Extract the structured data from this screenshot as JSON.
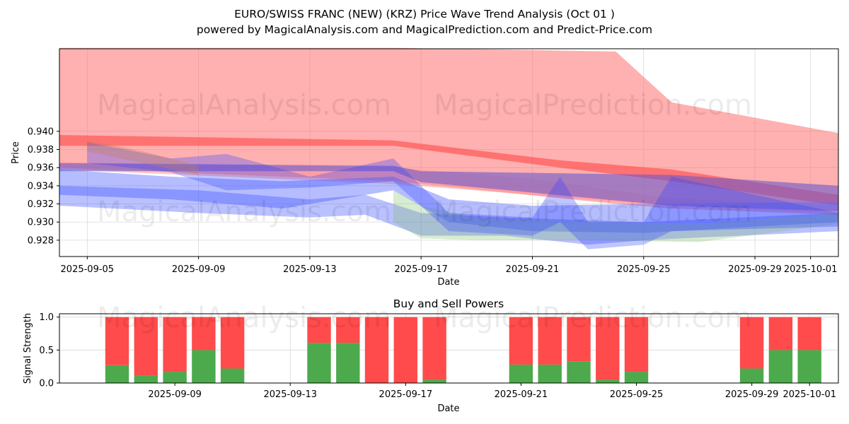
{
  "title_line1": "EURO/SWISS FRANC (NEW) (KRZ) Price Wave Trend Analysis (Oct 01 )",
  "title_line2": "powered by MagicalAnalysis.com and MagicalPrediction.com and Predict-Price.com",
  "watermarks": [
    "MagicalAnalysis.com",
    "MagicalPrediction.com"
  ],
  "chart_data": [
    {
      "type": "area",
      "title": "",
      "xlabel": "Date",
      "ylabel": "Price",
      "ylim": [
        0.9262,
        0.9491
      ],
      "xlim": [
        "2025-09-04",
        "2025-10-02"
      ],
      "yticks": [
        "0.928",
        "0.930",
        "0.932",
        "0.934",
        "0.936",
        "0.938",
        "0.940"
      ],
      "xticks": [
        "2025-09-05",
        "2025-09-09",
        "2025-09-13",
        "2025-09-17",
        "2025-09-21",
        "2025-09-25",
        "2025-09-29",
        "2025-10-01"
      ],
      "grid": true,
      "series": [
        {
          "color": "#ff7070",
          "opacity": 0.55,
          "x": [
            "2025-09-04",
            "2025-09-16",
            "2025-09-24",
            "2025-09-26",
            "2025-10-02"
          ],
          "low": [
            0.936,
            0.9345,
            0.932,
            0.9315,
            0.9308
          ],
          "high": [
            0.9492,
            0.9492,
            0.9488,
            0.9432,
            0.9398
          ]
        },
        {
          "color": "#ff4040",
          "opacity": 0.55,
          "x": [
            "2025-09-04",
            "2025-09-16",
            "2025-09-22",
            "2025-09-26",
            "2025-10-02"
          ],
          "low": [
            0.9384,
            0.9384,
            0.936,
            0.9345,
            0.9318
          ],
          "high": [
            0.9396,
            0.939,
            0.9368,
            0.9358,
            0.933
          ]
        },
        {
          "color": "#ff9090",
          "opacity": 0.5,
          "x": [
            "2025-09-04",
            "2025-09-16",
            "2025-09-21",
            "2025-09-26",
            "2025-10-02"
          ],
          "low": [
            0.9358,
            0.9342,
            0.933,
            0.9318,
            0.931
          ],
          "high": [
            0.9366,
            0.936,
            0.9348,
            0.9326,
            0.9318
          ]
        },
        {
          "color": "#6a5acd",
          "opacity": 0.6,
          "x": [
            "2025-09-04",
            "2025-09-16",
            "2025-09-17",
            "2025-09-26",
            "2025-10-02"
          ],
          "low": [
            0.9356,
            0.9356,
            0.9344,
            0.9318,
            0.9312
          ],
          "high": [
            0.9365,
            0.9362,
            0.9356,
            0.9352,
            0.934
          ]
        },
        {
          "color": "#5a6cff",
          "opacity": 0.45,
          "x": [
            "2025-09-04",
            "2025-09-08",
            "2025-09-12",
            "2025-09-16",
            "2025-09-18",
            "2025-09-21",
            "2025-09-25",
            "2025-10-02"
          ],
          "low": [
            0.933,
            0.9325,
            0.9315,
            0.9335,
            0.93,
            0.929,
            0.9288,
            0.93
          ],
          "high": [
            0.9358,
            0.935,
            0.9345,
            0.935,
            0.9325,
            0.9318,
            0.932,
            0.9322
          ]
        },
        {
          "color": "#3a4cff",
          "opacity": 0.35,
          "x": [
            "2025-09-04",
            "2025-09-09",
            "2025-09-13",
            "2025-09-15",
            "2025-09-17",
            "2025-09-20",
            "2025-09-23",
            "2025-09-25",
            "2025-10-02"
          ],
          "low": [
            0.9318,
            0.931,
            0.9305,
            0.9308,
            0.9285,
            0.9285,
            0.9275,
            0.928,
            0.929
          ],
          "high": [
            0.934,
            0.9335,
            0.9325,
            0.933,
            0.931,
            0.9305,
            0.9302,
            0.93,
            0.931
          ]
        },
        {
          "color": "#7fbf6a",
          "opacity": 0.3,
          "x": [
            "2025-09-16",
            "2025-09-17",
            "2025-09-19",
            "2025-09-23",
            "2025-09-27",
            "2025-10-02"
          ],
          "low": [
            0.93,
            0.9282,
            0.928,
            0.928,
            0.9278,
            0.9298
          ],
          "high": [
            0.9335,
            0.9318,
            0.9305,
            0.93,
            0.9298,
            0.931
          ]
        },
        {
          "color": "#3040ff",
          "opacity": 0.3,
          "x": [
            "2025-09-05",
            "2025-09-08",
            "2025-09-10",
            "2025-09-13",
            "2025-09-16",
            "2025-09-18",
            "2025-09-21",
            "2025-09-22",
            "2025-09-23",
            "2025-09-25",
            "2025-09-26",
            "2025-10-02"
          ],
          "low": [
            0.9365,
            0.9355,
            0.9335,
            0.9338,
            0.9345,
            0.929,
            0.9285,
            0.93,
            0.927,
            0.9275,
            0.929,
            0.9295
          ],
          "high": [
            0.9388,
            0.937,
            0.9375,
            0.935,
            0.937,
            0.931,
            0.9305,
            0.935,
            0.93,
            0.93,
            0.935,
            0.931
          ]
        },
        {
          "color": "#c08060",
          "opacity": 0.35,
          "x": [
            "2025-09-05",
            "2025-09-07",
            "2025-09-09"
          ],
          "low": [
            0.9378,
            0.9365,
            0.9352
          ],
          "high": [
            0.939,
            0.9378,
            0.9362
          ]
        }
      ]
    },
    {
      "type": "bar",
      "title": "Buy and Sell Powers",
      "xlabel": "Date",
      "ylabel": "Signal Strength",
      "ylim": [
        0,
        1.05
      ],
      "yticks": [
        "0.0",
        "0.5",
        "1.0"
      ],
      "xticks": [
        "2025-09-09",
        "2025-09-13",
        "2025-09-17",
        "2025-09-21",
        "2025-09-25",
        "2025-09-29",
        "2025-10-01"
      ],
      "xlim": [
        "2025-09-05",
        "2025-10-02"
      ],
      "grid": true,
      "colors": {
        "buy": "#4caa4c",
        "sell": "#ff4b4b"
      },
      "x": [
        "2025-09-07",
        "2025-09-08",
        "2025-09-09",
        "2025-09-10",
        "2025-09-11",
        "2025-09-14",
        "2025-09-15",
        "2025-09-16",
        "2025-09-17",
        "2025-09-18",
        "2025-09-21",
        "2025-09-22",
        "2025-09-23",
        "2025-09-24",
        "2025-09-25",
        "2025-09-29",
        "2025-09-30",
        "2025-10-01"
      ],
      "series": [
        {
          "name": "buy",
          "values": [
            0.27,
            0.11,
            0.17,
            0.5,
            0.22,
            0.61,
            0.61,
            0.0,
            0.0,
            0.05,
            0.28,
            0.28,
            0.33,
            0.05,
            0.17,
            0.22,
            0.5,
            0.5
          ]
        },
        {
          "name": "sell",
          "values": [
            0.73,
            0.89,
            0.83,
            0.5,
            0.78,
            0.39,
            0.39,
            1.0,
            1.0,
            0.95,
            0.72,
            0.72,
            0.67,
            0.95,
            0.83,
            0.78,
            0.5,
            0.5
          ]
        }
      ]
    }
  ]
}
